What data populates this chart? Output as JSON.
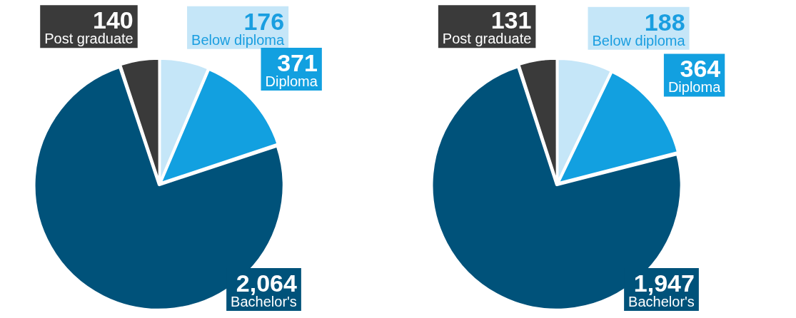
{
  "chart_data": [
    {
      "type": "pie",
      "categories": [
        "Below diploma",
        "Diploma",
        "Bachelor's",
        "Post graduate"
      ],
      "values": [
        176,
        371,
        2064,
        140
      ],
      "value_labels": [
        "176",
        "371",
        "2,064",
        "140"
      ],
      "colors": [
        "#c5e6f8",
        "#12a0e0",
        "#00527a",
        "#3a3a3a"
      ]
    },
    {
      "type": "pie",
      "categories": [
        "Below diploma",
        "Diploma",
        "Bachelor's",
        "Post graduate"
      ],
      "values": [
        188,
        364,
        1947,
        131
      ],
      "value_labels": [
        "188",
        "364",
        "1,947",
        "131"
      ],
      "colors": [
        "#c5e6f8",
        "#12a0e0",
        "#00527a",
        "#3a3a3a"
      ]
    }
  ]
}
